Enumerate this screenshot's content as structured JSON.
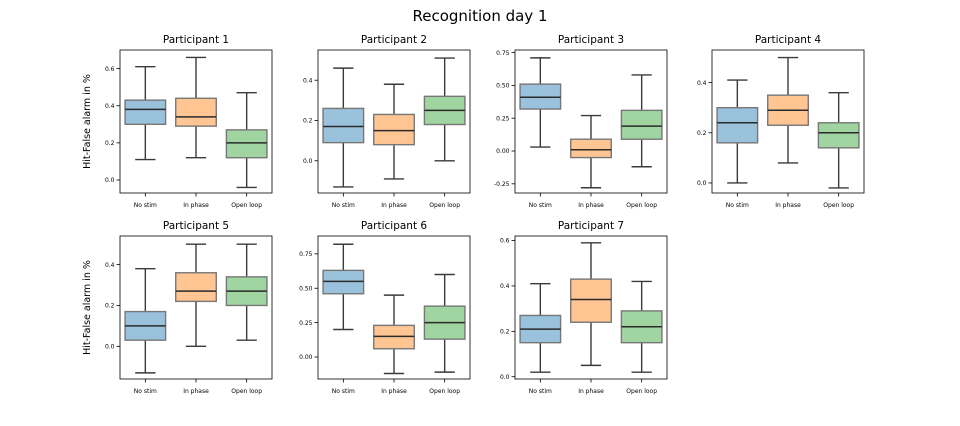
{
  "figure_title": "Recognition day 1",
  "colors": {
    "No stim": "#1f77b4",
    "In phase": "#ff7f0e",
    "Open loop": "#2ca02c",
    "box_alpha": 0.45,
    "line": "#3a3a3a"
  },
  "chart_data": [
    {
      "type": "box",
      "title": "Participant 1",
      "ylabel": "Hit-False alarm in %",
      "categories": [
        "No stim",
        "In phase",
        "Open loop"
      ],
      "yticks": [
        0.0,
        0.2,
        0.4,
        0.6
      ],
      "tick_labels": [
        "0.0",
        "0.2",
        "0.4",
        "0.6"
      ],
      "ylim": [
        -0.07,
        0.7
      ],
      "boxes": [
        {
          "category": "No stim",
          "whisker_low": 0.11,
          "q1": 0.3,
          "median": 0.38,
          "q3": 0.43,
          "whisker_high": 0.61
        },
        {
          "category": "In phase",
          "whisker_low": 0.12,
          "q1": 0.29,
          "median": 0.34,
          "q3": 0.44,
          "whisker_high": 0.66
        },
        {
          "category": "Open loop",
          "whisker_low": -0.04,
          "q1": 0.12,
          "median": 0.2,
          "q3": 0.27,
          "whisker_high": 0.47
        }
      ]
    },
    {
      "type": "box",
      "title": "Participant 2",
      "ylabel": "",
      "categories": [
        "No stim",
        "In phase",
        "Open loop"
      ],
      "yticks": [
        0.0,
        0.2,
        0.4
      ],
      "tick_labels": [
        "0.0",
        "0.2",
        "0.4"
      ],
      "ylim": [
        -0.16,
        0.55
      ],
      "boxes": [
        {
          "category": "No stim",
          "whisker_low": -0.13,
          "q1": 0.09,
          "median": 0.17,
          "q3": 0.26,
          "whisker_high": 0.46
        },
        {
          "category": "In phase",
          "whisker_low": -0.09,
          "q1": 0.08,
          "median": 0.15,
          "q3": 0.23,
          "whisker_high": 0.38
        },
        {
          "category": "Open loop",
          "whisker_low": 0.0,
          "q1": 0.18,
          "median": 0.25,
          "q3": 0.32,
          "whisker_high": 0.51
        }
      ]
    },
    {
      "type": "box",
      "title": "Participant 3",
      "ylabel": "",
      "categories": [
        "No stim",
        "In phase",
        "Open loop"
      ],
      "yticks": [
        -0.25,
        0.0,
        0.25,
        0.5,
        0.75
      ],
      "tick_labels": [
        "-0.25",
        "0.00",
        "0.25",
        "0.50",
        "0.75"
      ],
      "ylim": [
        -0.32,
        0.77
      ],
      "boxes": [
        {
          "category": "No stim",
          "whisker_low": 0.03,
          "q1": 0.32,
          "median": 0.41,
          "q3": 0.51,
          "whisker_high": 0.71
        },
        {
          "category": "In phase",
          "whisker_low": -0.28,
          "q1": -0.05,
          "median": 0.01,
          "q3": 0.09,
          "whisker_high": 0.27
        },
        {
          "category": "Open loop",
          "whisker_low": -0.12,
          "q1": 0.09,
          "median": 0.19,
          "q3": 0.31,
          "whisker_high": 0.58
        }
      ]
    },
    {
      "type": "box",
      "title": "Participant 4",
      "ylabel": "",
      "categories": [
        "No stim",
        "In phase",
        "Open loop"
      ],
      "yticks": [
        0.0,
        0.2,
        0.4
      ],
      "tick_labels": [
        "0.0",
        "0.2",
        "0.4"
      ],
      "ylim": [
        -0.04,
        0.53
      ],
      "boxes": [
        {
          "category": "No stim",
          "whisker_low": 0.0,
          "q1": 0.16,
          "median": 0.24,
          "q3": 0.3,
          "whisker_high": 0.41
        },
        {
          "category": "In phase",
          "whisker_low": 0.08,
          "q1": 0.23,
          "median": 0.29,
          "q3": 0.35,
          "whisker_high": 0.5
        },
        {
          "category": "Open loop",
          "whisker_low": -0.02,
          "q1": 0.14,
          "median": 0.2,
          "q3": 0.24,
          "whisker_high": 0.36
        }
      ]
    },
    {
      "type": "box",
      "title": "Participant 5",
      "ylabel": "Hit-False alarm in %",
      "categories": [
        "No stim",
        "In phase",
        "Open loop"
      ],
      "yticks": [
        0.0,
        0.2,
        0.4
      ],
      "tick_labels": [
        "0.0",
        "0.2",
        "0.4"
      ],
      "ylim": [
        -0.16,
        0.54
      ],
      "boxes": [
        {
          "category": "No stim",
          "whisker_low": -0.13,
          "q1": 0.03,
          "median": 0.1,
          "q3": 0.17,
          "whisker_high": 0.38
        },
        {
          "category": "In phase",
          "whisker_low": 0.0,
          "q1": 0.22,
          "median": 0.27,
          "q3": 0.36,
          "whisker_high": 0.5
        },
        {
          "category": "Open loop",
          "whisker_low": 0.03,
          "q1": 0.2,
          "median": 0.27,
          "q3": 0.34,
          "whisker_high": 0.5
        }
      ]
    },
    {
      "type": "box",
      "title": "Participant 6",
      "ylabel": "",
      "categories": [
        "No stim",
        "In phase",
        "Open loop"
      ],
      "yticks": [
        0.0,
        0.25,
        0.5,
        0.75
      ],
      "tick_labels": [
        "0.00",
        "0.25",
        "0.50",
        "0.75"
      ],
      "ylim": [
        -0.16,
        0.88
      ],
      "boxes": [
        {
          "category": "No stim",
          "whisker_low": 0.2,
          "q1": 0.46,
          "median": 0.55,
          "q3": 0.63,
          "whisker_high": 0.82
        },
        {
          "category": "In phase",
          "whisker_low": -0.12,
          "q1": 0.06,
          "median": 0.15,
          "q3": 0.23,
          "whisker_high": 0.45
        },
        {
          "category": "Open loop",
          "whisker_low": -0.11,
          "q1": 0.13,
          "median": 0.25,
          "q3": 0.37,
          "whisker_high": 0.6
        }
      ]
    },
    {
      "type": "box",
      "title": "Participant 7",
      "ylabel": "",
      "categories": [
        "No stim",
        "In phase",
        "Open loop"
      ],
      "yticks": [
        0.0,
        0.2,
        0.4,
        0.6
      ],
      "tick_labels": [
        "0.0",
        "0.2",
        "0.4",
        "0.6"
      ],
      "ylim": [
        -0.01,
        0.62
      ],
      "boxes": [
        {
          "category": "No stim",
          "whisker_low": 0.02,
          "q1": 0.15,
          "median": 0.21,
          "q3": 0.27,
          "whisker_high": 0.41
        },
        {
          "category": "In phase",
          "whisker_low": 0.05,
          "q1": 0.24,
          "median": 0.34,
          "q3": 0.43,
          "whisker_high": 0.59
        },
        {
          "category": "Open loop",
          "whisker_low": 0.02,
          "q1": 0.15,
          "median": 0.22,
          "q3": 0.29,
          "whisker_high": 0.42
        }
      ]
    }
  ]
}
